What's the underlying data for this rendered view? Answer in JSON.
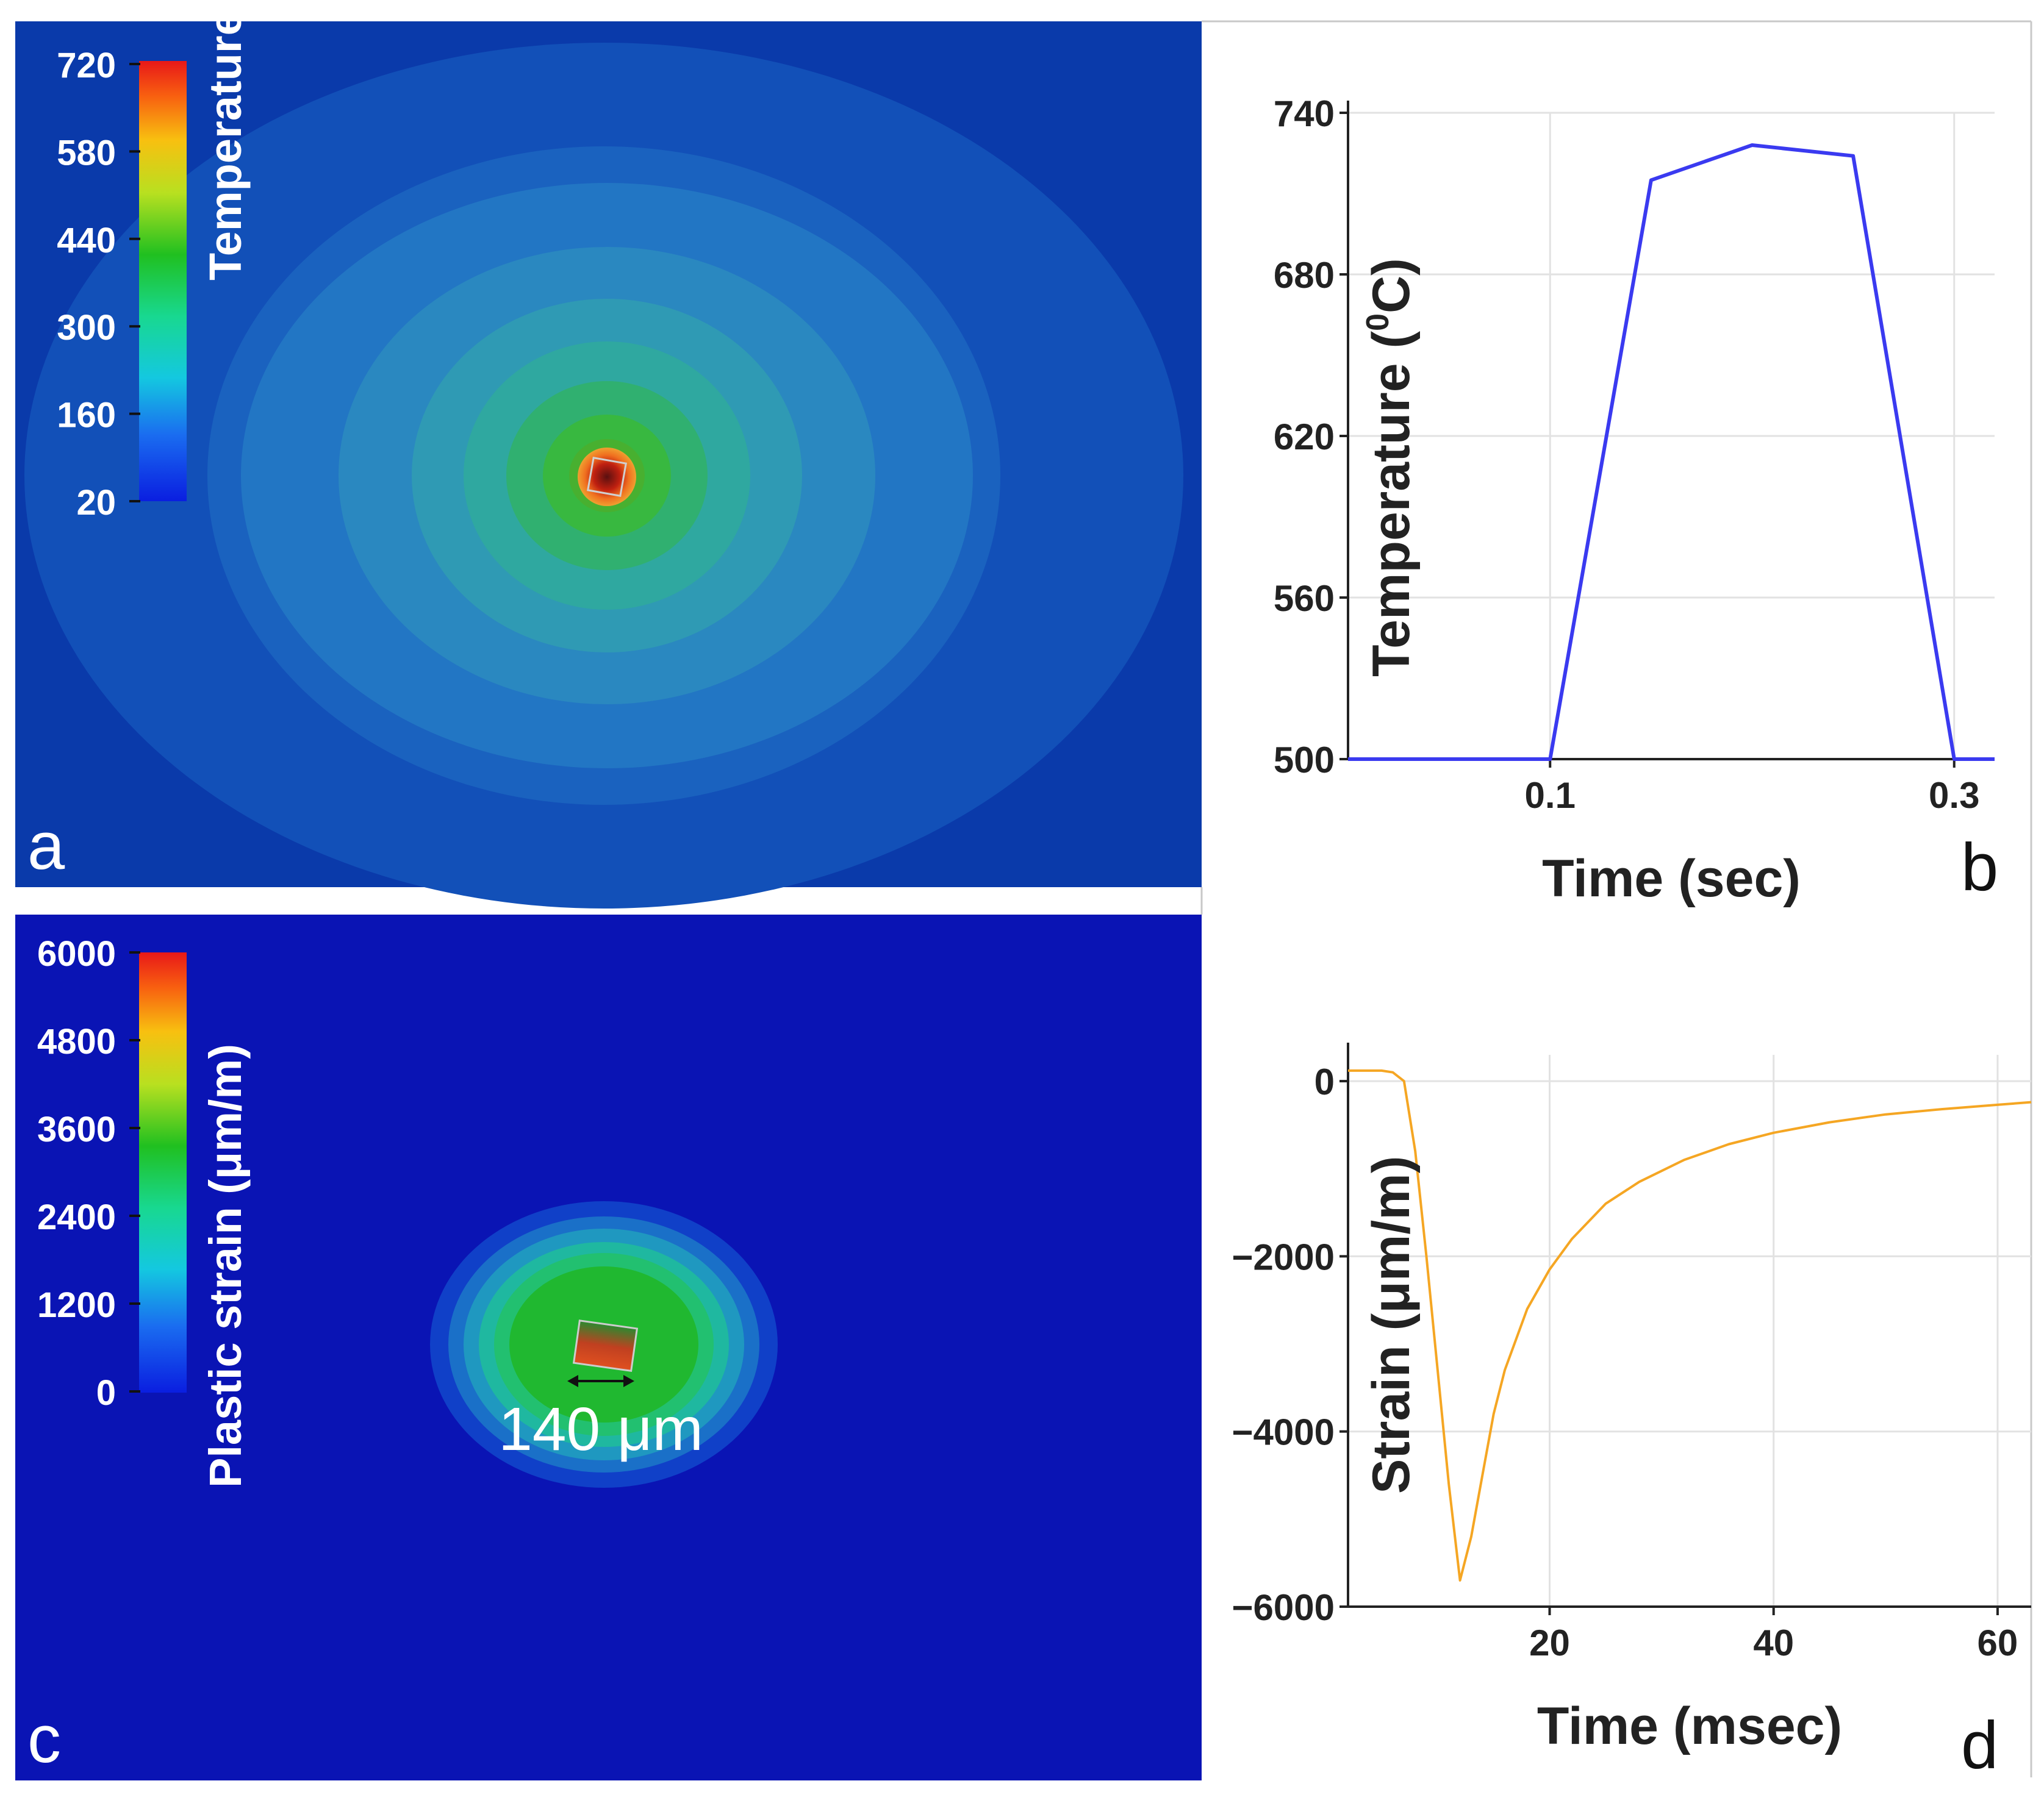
{
  "figure": {
    "panels": [
      {
        "id": "a",
        "panel_label": "a",
        "type": "heatmap",
        "colorbar": {
          "title": "Temperature (°C)",
          "ticks": [
            "720",
            "580",
            "440",
            "300",
            "160",
            "20"
          ],
          "range": [
            20,
            720
          ]
        }
      },
      {
        "id": "b",
        "panel_label": "b"
      },
      {
        "id": "c",
        "panel_label": "c",
        "type": "heatmap",
        "colorbar": {
          "title": "Plastic strain (μm/m)",
          "ticks": [
            "6000",
            "4800",
            "3600",
            "2400",
            "1200",
            "0"
          ],
          "range": [
            0,
            6000
          ]
        },
        "annotation": "140 μm"
      },
      {
        "id": "d",
        "panel_label": "d"
      }
    ]
  },
  "colors": {
    "background_blue": "#0a2fa8",
    "line_b": "#3a3af0",
    "line_d": "#f5a623",
    "white": "#ffffff"
  },
  "chart_data": [
    {
      "id": "b",
      "type": "line",
      "title": "",
      "xlabel": "Time (sec)",
      "ylabel": "Temperature (⁰C)",
      "ylabel_main": "Temperature (",
      "ylabel_sup": "0",
      "ylabel_end": "C)",
      "xlim": [
        0.0,
        0.32
      ],
      "ylim": [
        500,
        740
      ],
      "xticks": [
        0.1,
        0.3
      ],
      "xtick_labels": [
        "0.1",
        "0.3"
      ],
      "yticks": [
        500,
        560,
        620,
        680,
        740
      ],
      "ytick_labels": [
        "500",
        "560",
        "620",
        "680",
        "740"
      ],
      "grid": true,
      "series": [
        {
          "name": "Temperature",
          "x": [
            0.0,
            0.1,
            0.15,
            0.2,
            0.25,
            0.3,
            0.32
          ],
          "y": [
            500,
            500,
            715,
            728,
            724,
            500,
            500
          ]
        }
      ]
    },
    {
      "id": "d",
      "type": "line",
      "title": "",
      "xlabel": "Time (msec)",
      "ylabel": "Strain (μm/m)",
      "xlim": [
        2,
        63
      ],
      "ylim": [
        -6000,
        300
      ],
      "xticks": [
        20,
        40,
        60
      ],
      "xtick_labels": [
        "20",
        "40",
        "60"
      ],
      "yticks": [
        0,
        -2000,
        -4000,
        -6000
      ],
      "ytick_labels": [
        "0",
        "−2000",
        "−4000",
        "−6000"
      ],
      "grid": true,
      "series": [
        {
          "name": "Strain",
          "x": [
            2,
            5,
            6,
            7,
            8,
            9,
            10,
            11,
            12,
            13,
            14,
            15,
            16,
            18,
            20,
            22,
            25,
            28,
            32,
            36,
            40,
            45,
            50,
            55,
            60,
            63
          ],
          "y": [
            120,
            120,
            100,
            0,
            -800,
            -2000,
            -3300,
            -4600,
            -5700,
            -5200,
            -4500,
            -3800,
            -3300,
            -2600,
            -2150,
            -1800,
            -1400,
            -1150,
            -900,
            -720,
            -590,
            -470,
            -380,
            -320,
            -270,
            -240
          ]
        }
      ]
    }
  ]
}
